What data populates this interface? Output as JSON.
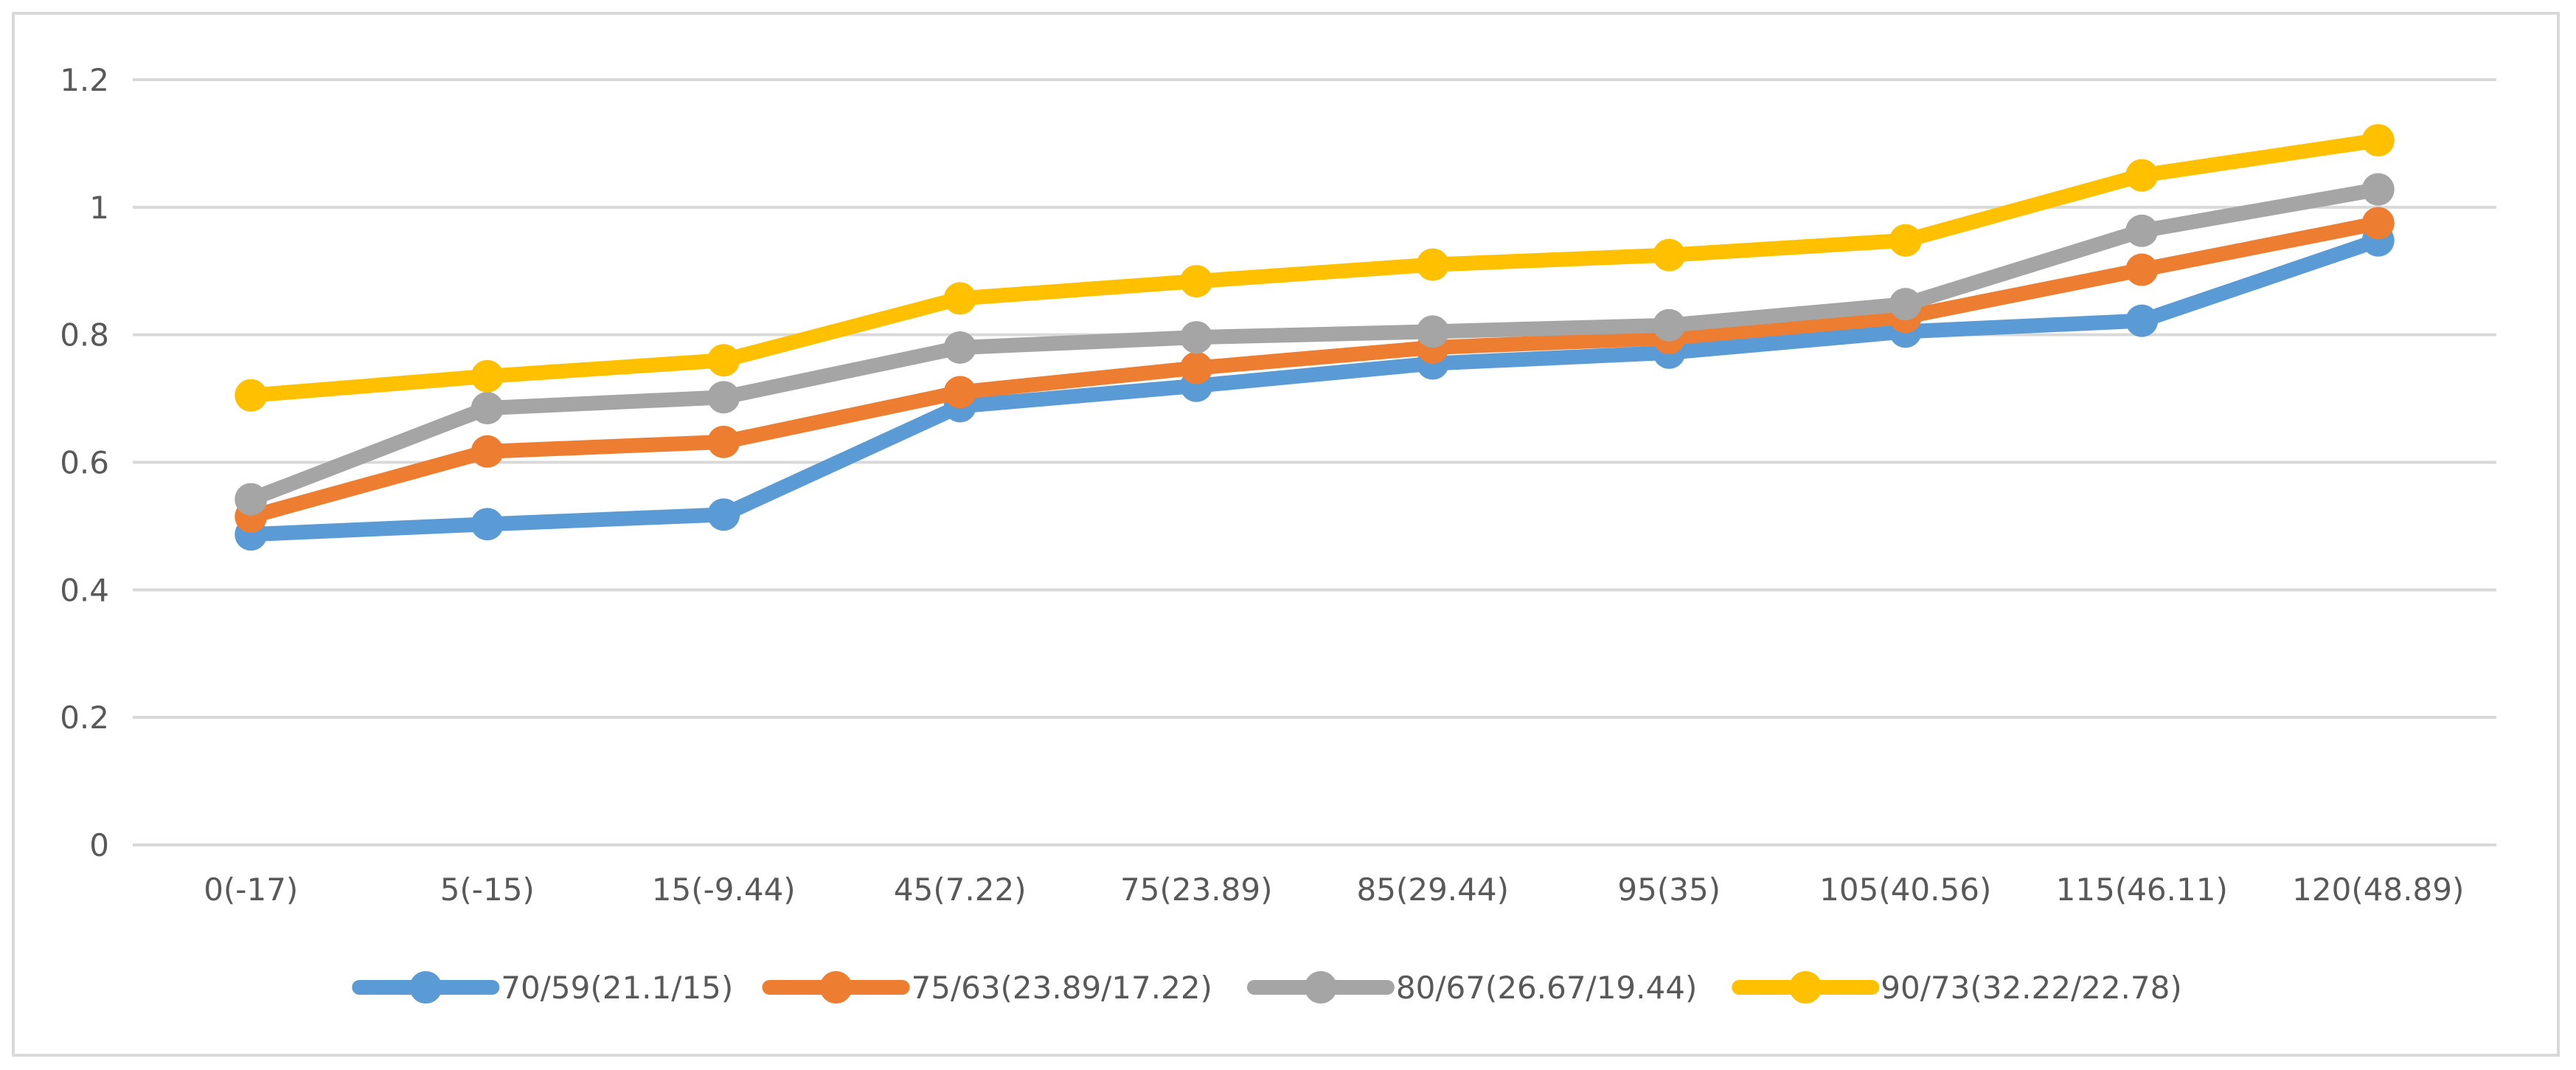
{
  "chart_data": {
    "type": "line",
    "title": "",
    "xlabel": "",
    "ylabel": "",
    "ylim": [
      0,
      1.2
    ],
    "y_ticks": [
      "0",
      "0.2",
      "0.4",
      "0.6",
      "0.8",
      "1",
      "1.2"
    ],
    "grid": true,
    "legend_position": "bottom",
    "categories": [
      "0(-17)",
      "5(-15)",
      "15(-9.44)",
      "45(7.22)",
      "75(23.89)",
      "85(29.44)",
      "95(35)",
      "105(40.56)",
      "115(46.11)",
      "120(48.89)"
    ],
    "series": [
      {
        "name": "70/59(21.1/15)",
        "color": "#5b9bd5",
        "values": [
          0.487,
          0.503,
          0.518,
          0.688,
          0.72,
          0.755,
          0.772,
          0.805,
          0.822,
          0.948
        ]
      },
      {
        "name": "75/63(23.89/17.22)",
        "color": "#ed7d31",
        "values": [
          0.515,
          0.617,
          0.632,
          0.71,
          0.748,
          0.78,
          0.795,
          0.828,
          0.902,
          0.975
        ]
      },
      {
        "name": "80/67(26.67/19.44)",
        "color": "#a5a5a5",
        "values": [
          0.542,
          0.685,
          0.702,
          0.78,
          0.796,
          0.805,
          0.815,
          0.848,
          0.963,
          1.028
        ]
      },
      {
        "name": "90/73(32.22/22.78)",
        "color": "#ffc000",
        "values": [
          0.705,
          0.735,
          0.76,
          0.857,
          0.884,
          0.91,
          0.925,
          0.948,
          1.05,
          1.105
        ]
      }
    ]
  }
}
